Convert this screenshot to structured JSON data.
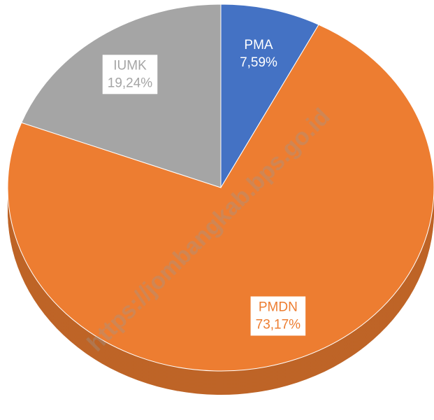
{
  "chart_data": {
    "type": "pie",
    "categories": [
      "PMA",
      "PMDN",
      "IUMK"
    ],
    "values": [
      7.59,
      73.17,
      19.24
    ],
    "value_labels": [
      "7,59%",
      "73,17%",
      "19,24%"
    ],
    "colors": [
      "#4472c4",
      "#ed7d31",
      "#a5a5a5"
    ],
    "watermark": "https://jombangkab.bps.go.id"
  }
}
